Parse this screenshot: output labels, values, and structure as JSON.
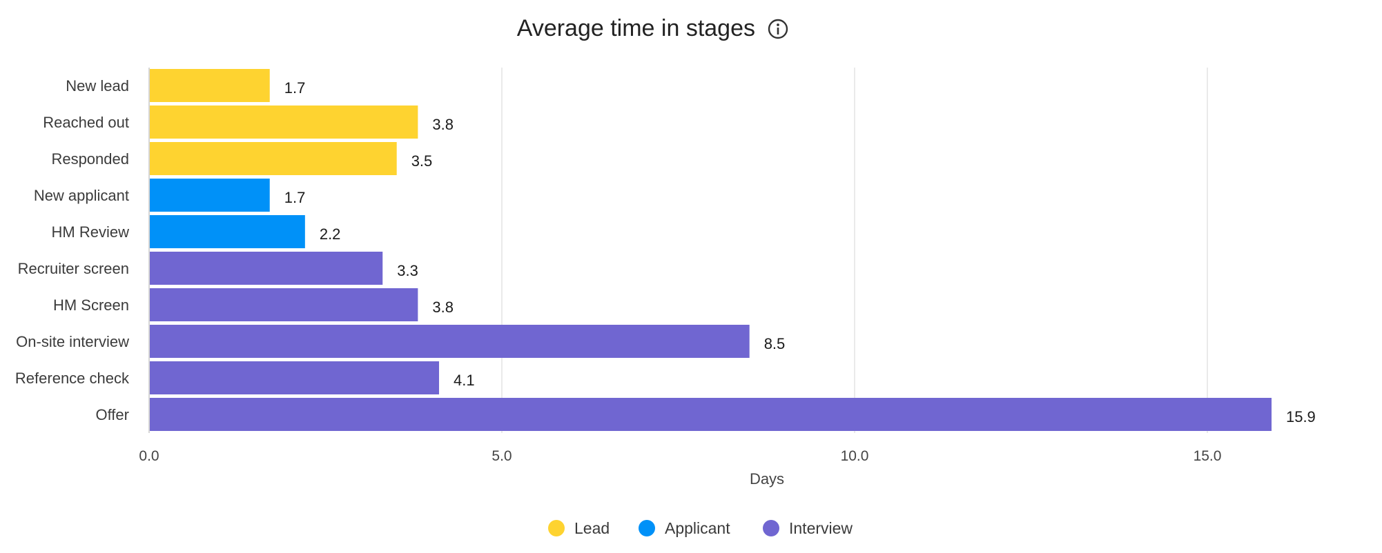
{
  "chart_data": {
    "type": "bar",
    "orientation": "horizontal",
    "title": "Average time in stages",
    "title_icon": "info-icon",
    "xlabel": "Days",
    "ylabel": "",
    "xlim": [
      0,
      17
    ],
    "x_ticks": [
      0,
      5,
      10,
      15
    ],
    "x_tick_labels": [
      "0.0",
      "5.0",
      "10.0",
      "15.0"
    ],
    "grid": true,
    "legend_position": "bottom-center",
    "categories": [
      "New lead",
      "Reached out",
      "Responded",
      "New applicant",
      "HM Review",
      "Recruiter screen",
      "HM Screen",
      "On-site interview",
      "Reference check",
      "Offer"
    ],
    "values": [
      1.7,
      3.8,
      3.5,
      1.7,
      2.2,
      3.3,
      3.8,
      8.5,
      4.1,
      15.9
    ],
    "value_labels": [
      "1.7",
      "3.8",
      "3.5",
      "1.7",
      "2.2",
      "3.3",
      "3.8",
      "8.5",
      "4.1",
      "15.9"
    ],
    "groups": [
      "Lead",
      "Lead",
      "Lead",
      "Applicant",
      "Applicant",
      "Interview",
      "Interview",
      "Interview",
      "Interview",
      "Interview"
    ],
    "legend": [
      {
        "name": "Lead",
        "color": "#fed330"
      },
      {
        "name": "Applicant",
        "color": "#0091f8"
      },
      {
        "name": "Interview",
        "color": "#7066d1"
      }
    ]
  }
}
